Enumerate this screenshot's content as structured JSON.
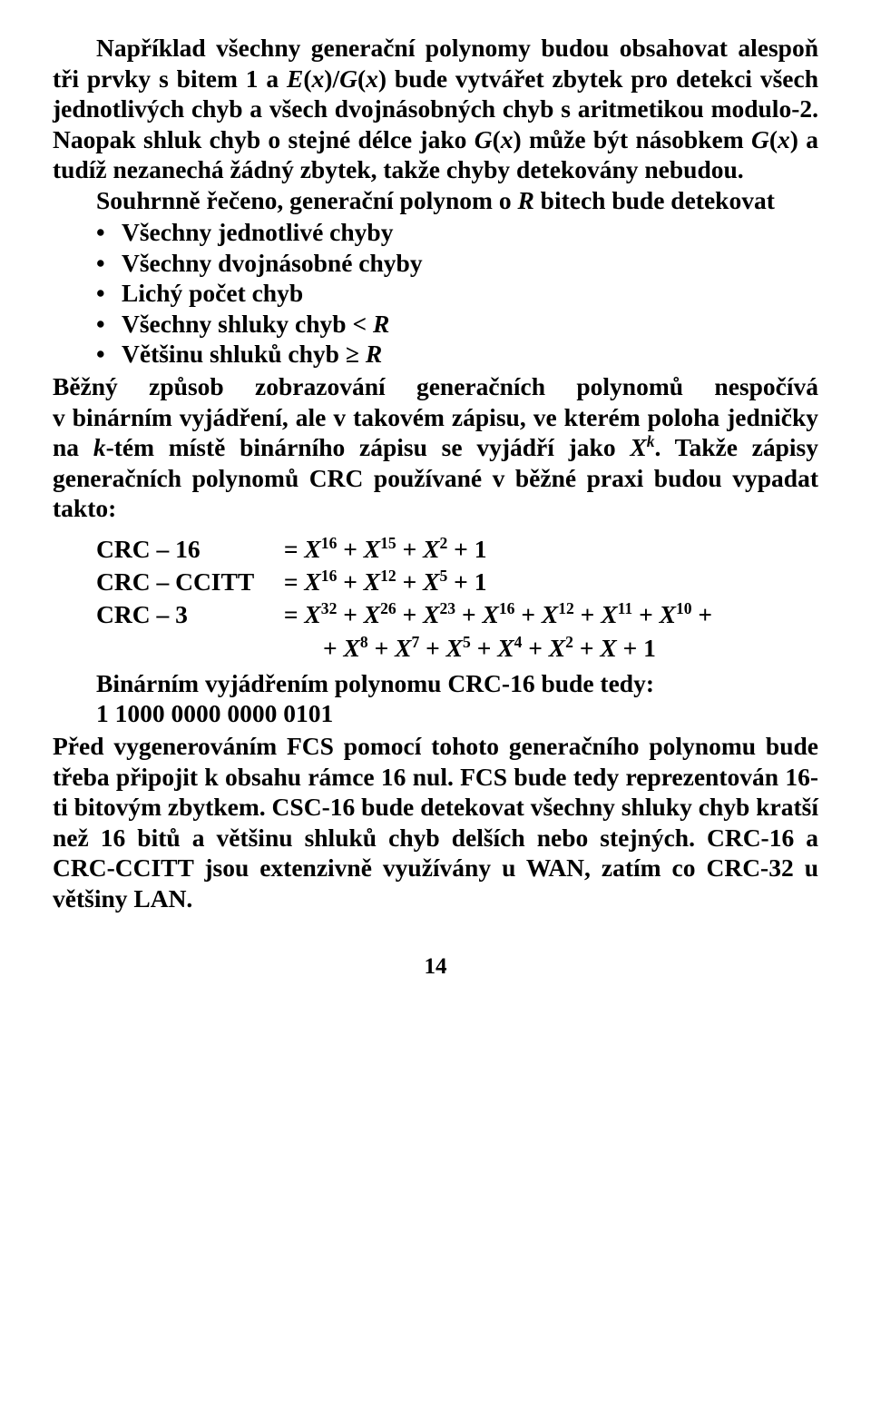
{
  "paragraphs": {
    "p1": "Například všechny generační polynomy budou obsahovat alespoň tři prvky s bitem 1 a E(x)/G(x) bude vytvářet zbytek pro detekci všech jednotlivých chyb a všech dvojnásobných chyb s aritmetikou modulo-2. Naopak shluk chyb o stejné délce jako G(x) může být násobkem G(x) a tudíž nezanechá žádný zbytek, takže chyby detekovány nebudou.",
    "p2": "Souhrnně řečeno, generační polynom o R bitech bude detekovat",
    "p3_lead": "Běžný způsob zobrazování generačních polynomů nespočívá v binárním vyjádření, ale v takovém zápisu, ve kterém poloha jedničky na k-tém místě binárního zápisu se vyjádří jako X",
    "p3_sup": "k",
    "p3_tail": ". Takže zápisy generačních polynomů CRC používané v běžné praxi budou vypadat takto:",
    "p4": "Před vygenerováním FCS pomocí tohoto generačního polynomu bude třeba připojit k obsahu rámce 16 nul. FCS bude tedy reprezentován 16-ti bitovým zbytkem. CSC-16 bude detekovat všechny shluky chyb kratší než 16 bitů a většinu shluků chyb delších nebo stejných. CRC-16 a CRC-CCITT jsou extenzivně využívány u WAN, zatím co CRC-32 u většiny LAN."
  },
  "bullets": [
    "Všechny jednotlivé chyby",
    "Všechny dvojnásobné chyby",
    "Lichý počet chyb",
    "Všechny shluky chyb < R",
    "Většinu shluků chyb ≥ R"
  ],
  "formulas": {
    "f1_label": "CRC – 16",
    "f1_rhs": "= X<sup>16</sup> + X<sup>15</sup> + X<sup>2</sup> + 1",
    "f2_label": "CRC – CCITT",
    "f2_rhs": "= X<sup>16</sup> + X<sup>12</sup> + X<sup>5</sup> + 1",
    "f3_label": "CRC – 3",
    "f3_rhs": "= X<sup>32</sup> + X<sup>26</sup> + X<sup>23</sup> + X<sup>16</sup> + X<sup>12</sup> + X<sup>11</sup> + X<sup>10</sup> +",
    "f3_cont": "+ X<sup>8</sup> + X<sup>7</sup> + X<sup>5</sup> + X<sup>4</sup> + X<sup>2</sup> + X + 1"
  },
  "binary": {
    "line1": "Binárním vyjádřením polynomu CRC-16 bude tedy:",
    "line2": "1 1000 0000 0000 0101"
  },
  "page_number": "14"
}
